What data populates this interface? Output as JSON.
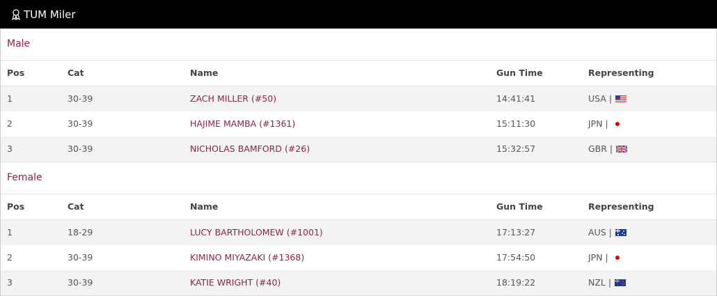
{
  "header": {
    "title": "TUM Miler"
  },
  "sections": [
    {
      "title": "Male",
      "columns": [
        "Pos",
        "Cat",
        "Name",
        "Gun Time",
        "Representing"
      ],
      "rows": [
        [
          "1",
          "30-39",
          "ZACH MILLER (#50)",
          "14:41:41",
          "USA |"
        ],
        [
          "2",
          "30-39",
          "HAJIME MAMBA (#1361)",
          "15:11:30",
          "JPN |"
        ],
        [
          "3",
          "30-39",
          "NICHOLAS BAMFORD (#26)",
          "15:32:57",
          "GBR |"
        ]
      ]
    },
    {
      "title": "Female",
      "columns": [
        "Pos",
        "Cat",
        "Name",
        "Gun Time",
        "Representing"
      ],
      "rows": [
        [
          "1",
          "18-29",
          "LUCY BARTHOLOMEW (#1001)",
          "17:13:27",
          "AUS |"
        ],
        [
          "2",
          "30-39",
          "KIMINO MIYAZAKI (#1368)",
          "17:54:50",
          "JPN |"
        ],
        [
          "3",
          "30-39",
          "KATIE WRIGHT (#40)",
          "18:19:22",
          "NZL |"
        ]
      ]
    }
  ]
}
